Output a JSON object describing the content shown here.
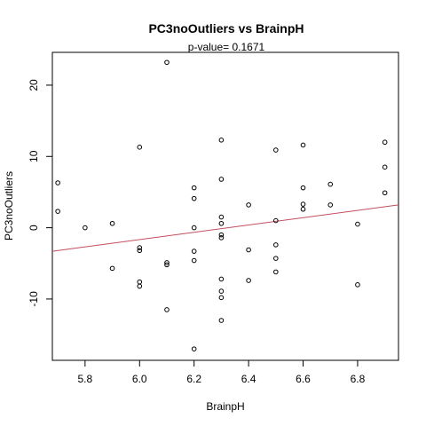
{
  "chart_data": {
    "type": "scatter",
    "title": "PC3noOutliers  vs  BrainpH",
    "subtitle": "p-value= 0.1671",
    "xlabel": "BrainpH",
    "ylabel": "PC3noOutliers",
    "xlim": [
      5.68,
      6.95
    ],
    "ylim": [
      -18.6,
      24.6
    ],
    "x_ticks": [
      5.8,
      6.0,
      6.2,
      6.4,
      6.6,
      6.8
    ],
    "x_tick_labels": [
      "5.8",
      "6.0",
      "6.2",
      "6.4",
      "6.6",
      "6.8"
    ],
    "y_ticks": [
      -10,
      0,
      10,
      20
    ],
    "y_tick_labels": [
      "-10",
      "0",
      "10",
      "20"
    ],
    "grid": false,
    "points": [
      {
        "x": 5.7,
        "y": 6.3
      },
      {
        "x": 5.7,
        "y": 2.3
      },
      {
        "x": 5.8,
        "y": 0.0
      },
      {
        "x": 5.9,
        "y": 0.6
      },
      {
        "x": 5.9,
        "y": -5.7
      },
      {
        "x": 6.0,
        "y": 11.3
      },
      {
        "x": 6.0,
        "y": -2.8
      },
      {
        "x": 6.0,
        "y": -3.2
      },
      {
        "x": 6.0,
        "y": -7.6
      },
      {
        "x": 6.0,
        "y": -8.2
      },
      {
        "x": 6.1,
        "y": 23.2
      },
      {
        "x": 6.1,
        "y": -4.9
      },
      {
        "x": 6.1,
        "y": -5.2
      },
      {
        "x": 6.1,
        "y": -11.5
      },
      {
        "x": 6.2,
        "y": 5.6
      },
      {
        "x": 6.2,
        "y": 4.1
      },
      {
        "x": 6.2,
        "y": 0.0
      },
      {
        "x": 6.2,
        "y": -3.3
      },
      {
        "x": 6.2,
        "y": -4.6
      },
      {
        "x": 6.2,
        "y": -17.0
      },
      {
        "x": 6.3,
        "y": 12.3
      },
      {
        "x": 6.3,
        "y": 6.8
      },
      {
        "x": 6.3,
        "y": 1.5
      },
      {
        "x": 6.3,
        "y": 0.6
      },
      {
        "x": 6.3,
        "y": -1.0
      },
      {
        "x": 6.3,
        "y": -1.4
      },
      {
        "x": 6.3,
        "y": -7.2
      },
      {
        "x": 6.3,
        "y": -8.9
      },
      {
        "x": 6.3,
        "y": -9.8
      },
      {
        "x": 6.3,
        "y": -13.0
      },
      {
        "x": 6.4,
        "y": 3.2
      },
      {
        "x": 6.4,
        "y": -3.1
      },
      {
        "x": 6.4,
        "y": -7.4
      },
      {
        "x": 6.5,
        "y": 10.9
      },
      {
        "x": 6.5,
        "y": 1.0
      },
      {
        "x": 6.5,
        "y": -2.4
      },
      {
        "x": 6.5,
        "y": -4.3
      },
      {
        "x": 6.5,
        "y": -6.2
      },
      {
        "x": 6.6,
        "y": 11.6
      },
      {
        "x": 6.6,
        "y": 5.6
      },
      {
        "x": 6.6,
        "y": 3.3
      },
      {
        "x": 6.6,
        "y": 2.6
      },
      {
        "x": 6.7,
        "y": 6.1
      },
      {
        "x": 6.7,
        "y": 3.2
      },
      {
        "x": 6.8,
        "y": 0.5
      },
      {
        "x": 6.8,
        "y": -8.0
      },
      {
        "x": 6.9,
        "y": 12.0
      },
      {
        "x": 6.9,
        "y": 8.5
      },
      {
        "x": 6.9,
        "y": 4.9
      }
    ],
    "fit_line": {
      "x": [
        5.68,
        6.95
      ],
      "y": [
        -3.3,
        3.2
      ]
    },
    "point_color": "#000000",
    "fit_line_color": "#C44D5F"
  }
}
